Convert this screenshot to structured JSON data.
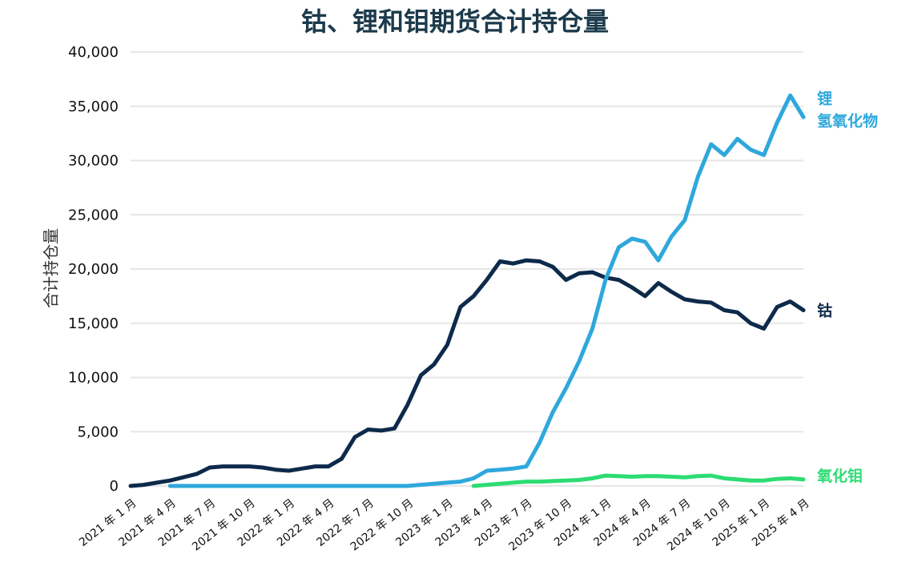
{
  "chart_data": {
    "type": "line",
    "title": "钴、锂和钼期货合计持仓量",
    "xlabel": "",
    "ylabel": "合计持仓量",
    "ylim": [
      0,
      40000
    ],
    "yticks": [
      "0",
      "5,000",
      "10,000",
      "15,000",
      "20,000",
      "25,000",
      "30,000",
      "35,000",
      "40,000"
    ],
    "xticks": [
      "2021 年 1 月",
      "2021 年 4 月",
      "2021 年 7 月",
      "2021 年 10 月",
      "2022 年 1 月",
      "2022 年 4 月",
      "2022 年 7 月",
      "2022 年 10 月",
      "2023 年 1 月",
      "2023 年 4 月",
      "2023 年 7 月",
      "2023 年 10 月",
      "2024 年 1 月",
      "2024 年 4 月",
      "2024 年 7 月",
      "2024 年 10 月",
      "2025 年 1 月",
      "2025 年 4 月"
    ],
    "grid": true,
    "legend": "inline-right",
    "series": [
      {
        "name": "钴",
        "color": "#0d2a4a",
        "x": [
          "2021-01",
          "2021-02",
          "2021-03",
          "2021-04",
          "2021-05",
          "2021-06",
          "2021-07",
          "2021-08",
          "2021-09",
          "2021-10",
          "2021-11",
          "2021-12",
          "2022-01",
          "2022-02",
          "2022-03",
          "2022-04",
          "2022-05",
          "2022-06",
          "2022-07",
          "2022-08",
          "2022-09",
          "2022-10",
          "2022-11",
          "2022-12",
          "2023-01",
          "2023-02",
          "2023-03",
          "2023-04",
          "2023-05",
          "2023-06",
          "2023-07",
          "2023-08",
          "2023-09",
          "2023-10",
          "2023-11",
          "2023-12",
          "2024-01",
          "2024-02",
          "2024-03",
          "2024-04",
          "2024-05",
          "2024-06",
          "2024-07",
          "2024-08",
          "2024-09",
          "2024-10",
          "2024-11",
          "2024-12",
          "2025-01",
          "2025-02",
          "2025-03",
          "2025-04"
        ],
        "values": [
          0,
          100,
          300,
          500,
          800,
          1100,
          1700,
          1800,
          1800,
          1800,
          1700,
          1500,
          1400,
          1600,
          1800,
          1800,
          2500,
          4500,
          5200,
          5100,
          5300,
          7500,
          10200,
          11200,
          13000,
          16500,
          17500,
          19000,
          20700,
          20500,
          20800,
          20700,
          20200,
          19000,
          19600,
          19700,
          19200,
          19000,
          18300,
          17500,
          18700,
          17900,
          17200,
          17000,
          16900,
          16200,
          16000,
          15000,
          14500,
          16500,
          17000,
          16200
        ]
      },
      {
        "name": "锂氢氧化物",
        "color": "#2ea8dc",
        "x": [
          "2021-04",
          "2021-07",
          "2021-10",
          "2022-01",
          "2022-04",
          "2022-07",
          "2022-10",
          "2022-12",
          "2023-01",
          "2023-02",
          "2023-03",
          "2023-04",
          "2023-05",
          "2023-06",
          "2023-07",
          "2023-08",
          "2023-09",
          "2023-10",
          "2023-11",
          "2023-12",
          "2024-01",
          "2024-02",
          "2024-03",
          "2024-04",
          "2024-05",
          "2024-06",
          "2024-07",
          "2024-08",
          "2024-09",
          "2024-10",
          "2024-11",
          "2024-12",
          "2025-01",
          "2025-02",
          "2025-03",
          "2025-04"
        ],
        "values": [
          0,
          0,
          0,
          0,
          0,
          0,
          0,
          200,
          300,
          400,
          700,
          1400,
          1500,
          1600,
          1800,
          4000,
          6800,
          9000,
          11500,
          14500,
          19000,
          22000,
          22800,
          22500,
          20800,
          23000,
          24500,
          28500,
          31500,
          30500,
          32000,
          31000,
          30500,
          33500,
          36000,
          34000
        ]
      },
      {
        "name": "氧化钼",
        "color": "#2cdc72",
        "x": [
          "2023-03",
          "2023-04",
          "2023-05",
          "2023-06",
          "2023-07",
          "2023-08",
          "2023-09",
          "2023-10",
          "2023-11",
          "2023-12",
          "2024-01",
          "2024-02",
          "2024-03",
          "2024-04",
          "2024-05",
          "2024-06",
          "2024-07",
          "2024-08",
          "2024-09",
          "2024-10",
          "2024-11",
          "2024-12",
          "2025-01",
          "2025-02",
          "2025-03",
          "2025-04"
        ],
        "values": [
          0,
          100,
          200,
          300,
          400,
          400,
          450,
          500,
          550,
          700,
          950,
          900,
          850,
          900,
          900,
          850,
          800,
          900,
          950,
          700,
          600,
          500,
          500,
          650,
          700,
          600
        ]
      }
    ],
    "labels": [
      {
        "series": "锂氢氧化物",
        "lines": [
          "锂",
          "氢氧化物"
        ]
      },
      {
        "series": "钴",
        "lines": [
          "钴"
        ]
      },
      {
        "series": "氧化钼",
        "lines": [
          "氧化钼"
        ]
      }
    ]
  }
}
